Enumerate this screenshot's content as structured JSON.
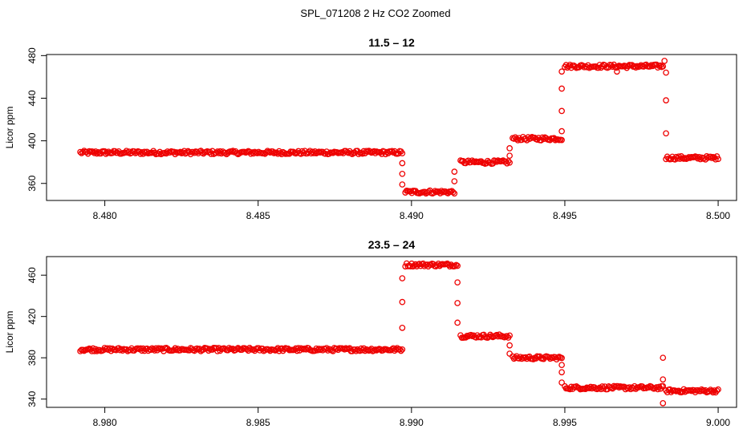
{
  "figure_title": "SPL_071208  2 Hz CO2 Zoomed",
  "colors": {
    "points": "#ee0000",
    "axes": "#000000",
    "background": "#ffffff"
  },
  "chart_data": [
    {
      "type": "scatter",
      "title": "11.5 – 12",
      "xlabel": "",
      "ylabel": "Licor ppm",
      "xlim": [
        8.4781,
        8.5006
      ],
      "ylim": [
        344,
        481
      ],
      "xticks": [
        8.48,
        8.485,
        8.49,
        8.495,
        8.5
      ],
      "xtick_labels": [
        "8.480",
        "8.485",
        "8.490",
        "8.495",
        "8.500"
      ],
      "yticks": [
        360,
        400,
        440,
        480
      ],
      "ytick_labels": [
        "360",
        "400",
        "440",
        "480"
      ],
      "segments": [
        {
          "x0": 8.4792,
          "x1": 8.4897,
          "y": 389
        },
        {
          "x0": 8.4898,
          "x1": 8.4914,
          "y": 352
        },
        {
          "x0": 8.4916,
          "x1": 8.4932,
          "y": 380
        },
        {
          "x0": 8.4933,
          "x1": 8.4949,
          "y": 402
        },
        {
          "x0": 8.495,
          "x1": 8.4982,
          "y": 470
        },
        {
          "x0": 8.4983,
          "x1": 8.5,
          "y": 384
        }
      ],
      "transitions": [
        {
          "x": 8.4897,
          "y": 379
        },
        {
          "x": 8.4897,
          "y": 369
        },
        {
          "x": 8.4897,
          "y": 359
        },
        {
          "x": 8.4914,
          "y": 362
        },
        {
          "x": 8.4914,
          "y": 371
        },
        {
          "x": 8.4932,
          "y": 386
        },
        {
          "x": 8.4932,
          "y": 393
        },
        {
          "x": 8.4949,
          "y": 409
        },
        {
          "x": 8.4949,
          "y": 428
        },
        {
          "x": 8.4949,
          "y": 449
        },
        {
          "x": 8.4949,
          "y": 465
        },
        {
          "x": 8.4967,
          "y": 465
        },
        {
          "x": 8.49825,
          "y": 475
        },
        {
          "x": 8.4983,
          "y": 464
        },
        {
          "x": 8.4983,
          "y": 438
        },
        {
          "x": 8.4983,
          "y": 407
        }
      ]
    },
    {
      "type": "scatter",
      "title": "23.5 – 24",
      "xlabel": "",
      "ylabel": "Licor ppm",
      "xlim": [
        8.9781,
        9.0006
      ],
      "ylim": [
        332,
        478
      ],
      "xticks": [
        8.98,
        8.985,
        8.99,
        8.995,
        9.0
      ],
      "xtick_labels": [
        "8.980",
        "8.985",
        "8.990",
        "8.995",
        "9.000"
      ],
      "yticks": [
        340,
        380,
        420,
        460
      ],
      "ytick_labels": [
        "340",
        "380",
        "420",
        "460"
      ],
      "segments": [
        {
          "x0": 8.9792,
          "x1": 8.9897,
          "y": 388
        },
        {
          "x0": 8.9898,
          "x1": 8.9915,
          "y": 470
        },
        {
          "x0": 8.9916,
          "x1": 8.9932,
          "y": 401
        },
        {
          "x0": 8.9933,
          "x1": 8.9949,
          "y": 380
        },
        {
          "x0": 8.995,
          "x1": 8.9982,
          "y": 351
        },
        {
          "x0": 8.9983,
          "x1": 9.0,
          "y": 348
        }
      ],
      "transitions": [
        {
          "x": 8.9897,
          "y": 409
        },
        {
          "x": 8.9897,
          "y": 434
        },
        {
          "x": 8.9897,
          "y": 457
        },
        {
          "x": 8.9915,
          "y": 453
        },
        {
          "x": 8.9915,
          "y": 433
        },
        {
          "x": 8.9915,
          "y": 414
        },
        {
          "x": 8.9932,
          "y": 392
        },
        {
          "x": 8.9932,
          "y": 384
        },
        {
          "x": 8.9949,
          "y": 373
        },
        {
          "x": 8.9949,
          "y": 366
        },
        {
          "x": 8.9949,
          "y": 356
        },
        {
          "x": 8.9982,
          "y": 380
        },
        {
          "x": 8.9982,
          "y": 359
        },
        {
          "x": 8.9982,
          "y": 336
        }
      ]
    }
  ]
}
